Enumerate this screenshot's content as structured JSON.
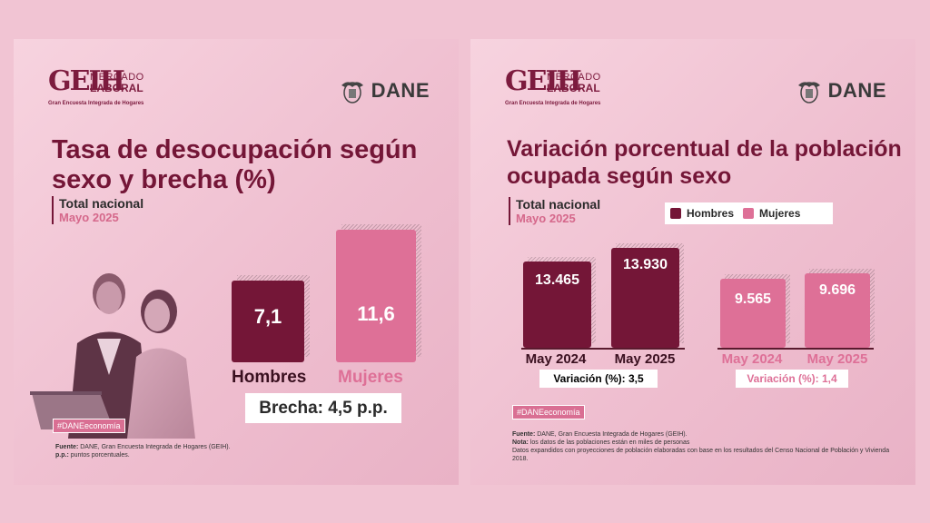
{
  "colors": {
    "hombres": "#741637",
    "mujeres": "#de7097",
    "title": "#741637"
  },
  "branding": {
    "geih_word": "GEIH",
    "geih_mercado": "MERCADO",
    "geih_laboral": "LABORAL",
    "geih_sub": "Gran Encuesta Integrada de Hogares",
    "dane": "DANE"
  },
  "left": {
    "title": "Tasa de desocupación según sexo y brecha (%)",
    "scope": "Total nacional",
    "period": "Mayo 2025",
    "brecha": "Brecha: 4,5 p.p.",
    "tag": "#DANEeconomía",
    "fuente_label": "Fuente:",
    "fuente": " DANE, Gran Encuesta Integrada de Hogares (GEIH).",
    "pp_label": "p.p.:",
    "pp": " puntos porcentuales."
  },
  "right": {
    "title": "Variación porcentual de la población ocupada según sexo",
    "scope": "Total nacional",
    "period": "Mayo 2025",
    "legend": [
      "Hombres",
      "Mujeres"
    ],
    "var_hombres": "Variación (%): 3,5",
    "var_mujeres": "Variación (%): 1,4",
    "tag": "#DANEeconomía",
    "fuente_label": "Fuente:",
    "fuente": " DANE, Gran Encuesta Integrada de Hogares (GEIH).",
    "nota_label": "Nota:",
    "nota": " los datos de las poblaciones están en miles de personas",
    "nota2": "Datos expandidos con proyecciones de población elaboradas con base en los resultados del Censo Nacional de Población y Vivienda 2018."
  },
  "chart_data": [
    {
      "type": "bar",
      "title": "Tasa de desocupación según sexo y brecha (%)",
      "categories": [
        "Hombres",
        "Mujeres"
      ],
      "values": [
        7.1,
        11.6
      ],
      "value_labels": [
        "7,1",
        "11,6"
      ]
    },
    {
      "type": "bar",
      "title": "Variación porcentual de la población ocupada según sexo",
      "categories": [
        "May 2024",
        "May 2025"
      ],
      "series": [
        {
          "name": "Hombres",
          "values": [
            13465,
            13930
          ],
          "value_labels": [
            "13.465",
            "13.930"
          ]
        },
        {
          "name": "Mujeres",
          "values": [
            9565,
            9696
          ],
          "value_labels": [
            "9.565",
            "9.696"
          ]
        }
      ]
    }
  ]
}
